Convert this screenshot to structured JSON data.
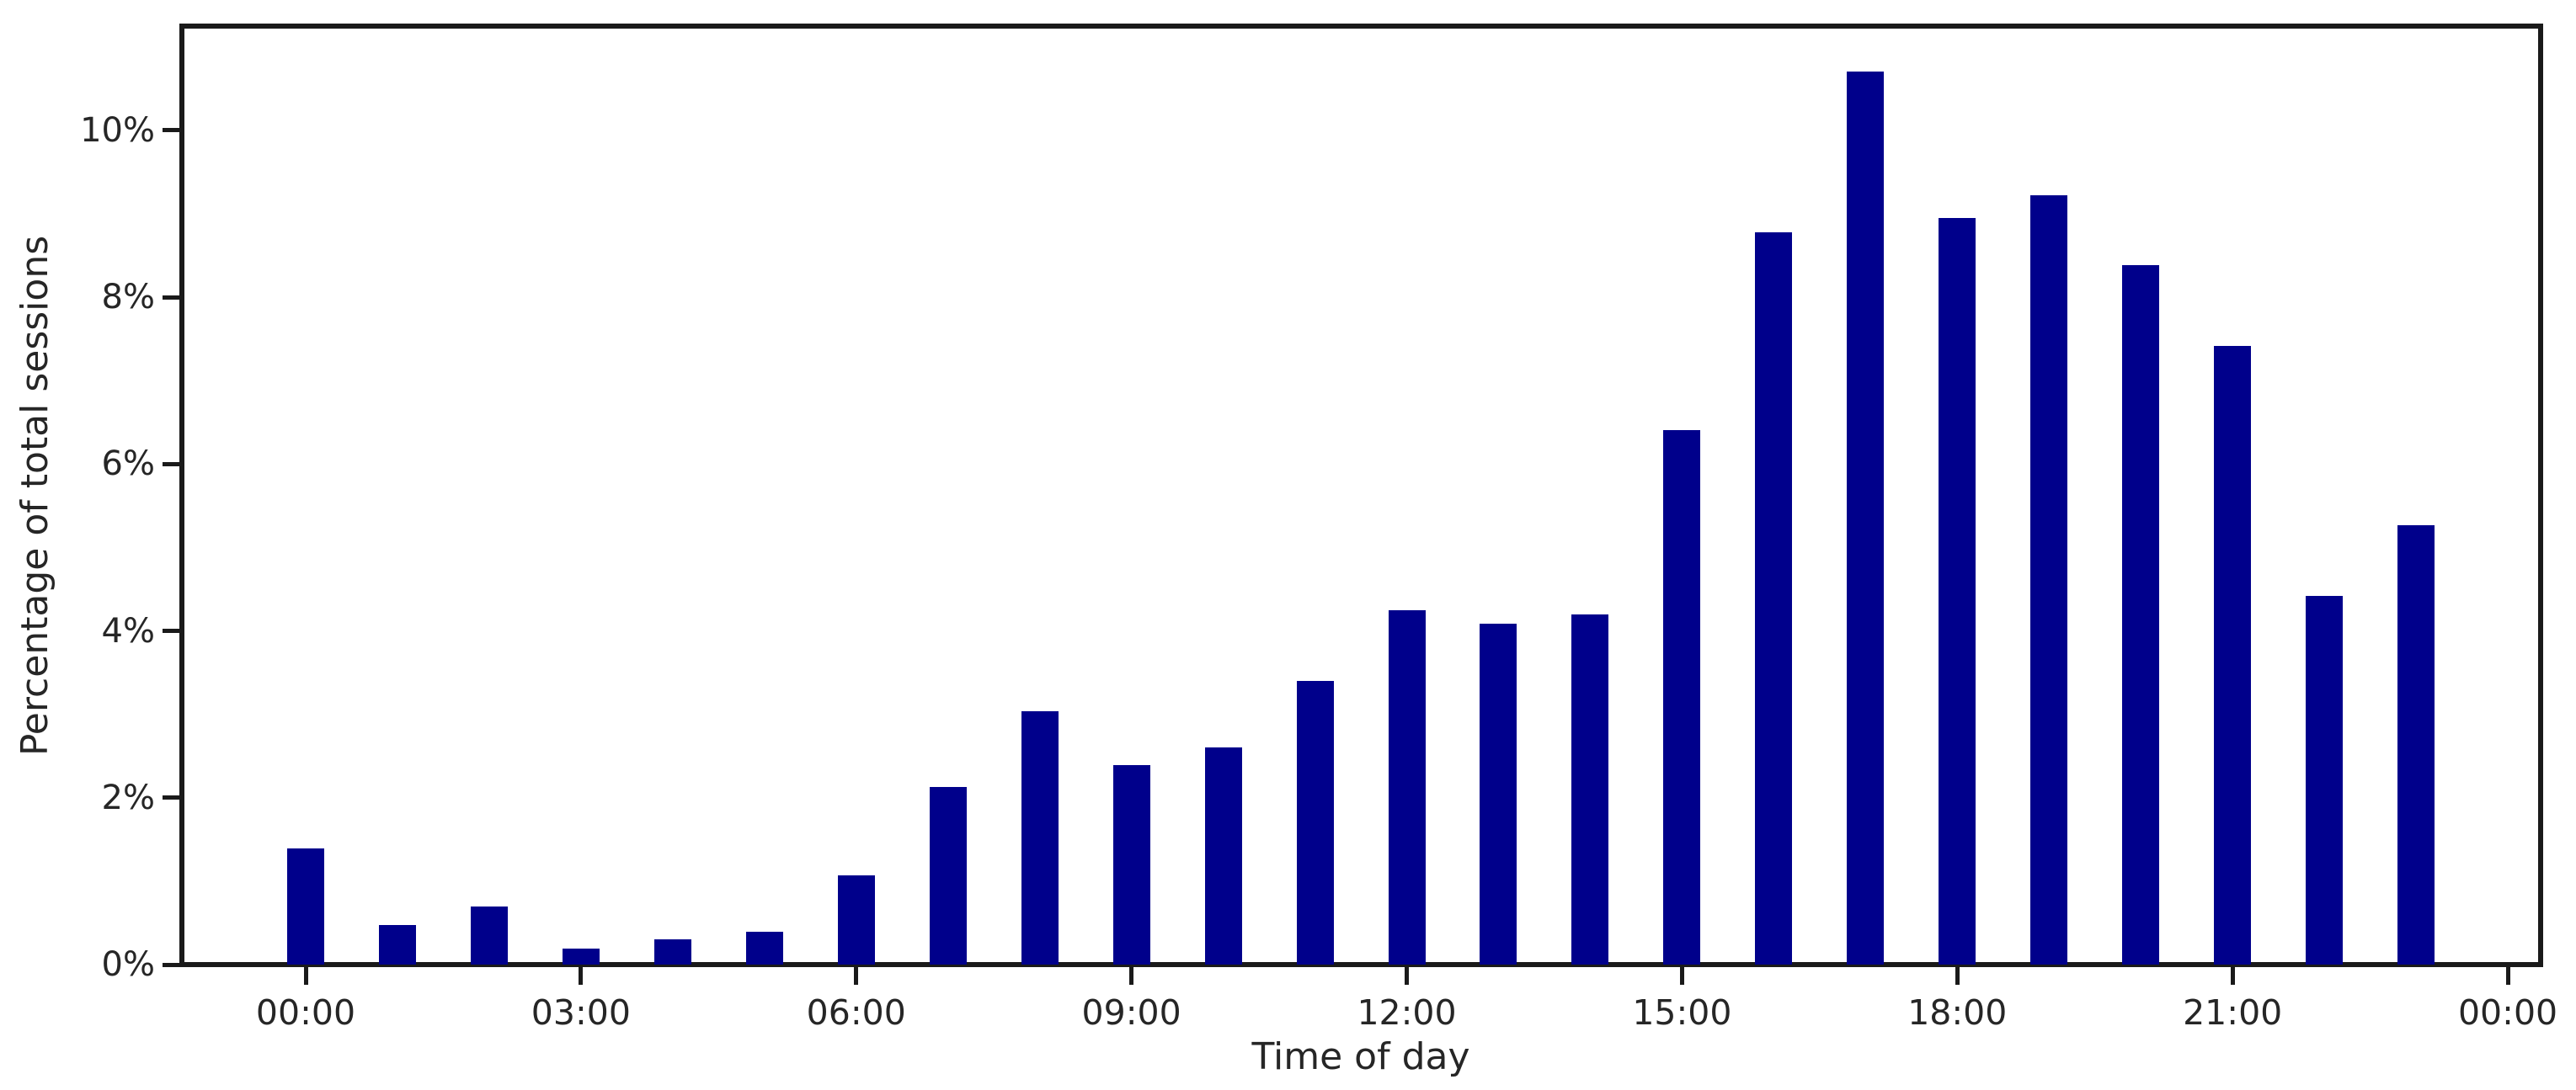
{
  "chart_data": {
    "type": "bar",
    "title": "",
    "xlabel": "Time of day",
    "ylabel": "Percentage of total sessions",
    "unit": "%",
    "bar_color": "#00008b",
    "axis_color": "#1a1a1a",
    "text_color": "#262626",
    "background": "#ffffff",
    "grid": false,
    "legend": null,
    "ylim": [
      0,
      11.25
    ],
    "categories": [
      "00:00",
      "01:00",
      "02:00",
      "03:00",
      "04:00",
      "05:00",
      "06:00",
      "07:00",
      "08:00",
      "09:00",
      "10:00",
      "11:00",
      "12:00",
      "13:00",
      "14:00",
      "15:00",
      "16:00",
      "17:00",
      "18:00",
      "19:00",
      "20:00",
      "21:00",
      "22:00",
      "23:00"
    ],
    "values": [
      1.39,
      0.47,
      0.7,
      0.19,
      0.3,
      0.39,
      1.07,
      2.13,
      3.04,
      2.39,
      2.6,
      3.4,
      4.25,
      4.09,
      4.2,
      6.41,
      8.78,
      10.71,
      8.95,
      9.22,
      8.38,
      7.42,
      4.42,
      5.27
    ],
    "x_ticks": [
      {
        "hour": 0,
        "label": "00:00"
      },
      {
        "hour": 3,
        "label": "03:00"
      },
      {
        "hour": 6,
        "label": "06:00"
      },
      {
        "hour": 9,
        "label": "09:00"
      },
      {
        "hour": 12,
        "label": "12:00"
      },
      {
        "hour": 15,
        "label": "15:00"
      },
      {
        "hour": 18,
        "label": "18:00"
      },
      {
        "hour": 21,
        "label": "21:00"
      },
      {
        "hour": 24,
        "label": "00:00"
      }
    ],
    "y_ticks": [
      {
        "value": 0,
        "label": "0%"
      },
      {
        "value": 2,
        "label": "2%"
      },
      {
        "value": 4,
        "label": "4%"
      },
      {
        "value": 6,
        "label": "6%"
      },
      {
        "value": 8,
        "label": "8%"
      },
      {
        "value": 10,
        "label": "10%"
      }
    ]
  }
}
